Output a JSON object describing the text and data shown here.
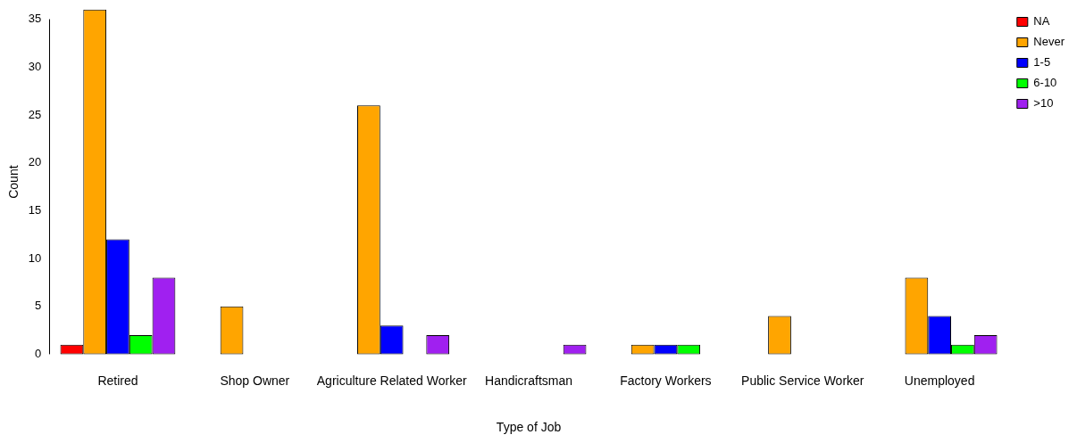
{
  "chart_data": {
    "type": "bar",
    "xlabel": "Type of Job",
    "ylabel": "Count",
    "categories": [
      "Retired",
      "Shop Owner",
      "Agriculture Related Worker",
      "Handicraftsman",
      "Factory Workers",
      "Public Service Worker",
      "Unemployed"
    ],
    "series": [
      {
        "name": "NA",
        "color": "#ff0000",
        "values": [
          1,
          0,
          0,
          0,
          0,
          0,
          0
        ]
      },
      {
        "name": "Never",
        "color": "#ffa500",
        "values": [
          36,
          5,
          26,
          0,
          1,
          4,
          8
        ]
      },
      {
        "name": "1-5",
        "color": "#0000ff",
        "values": [
          12,
          0,
          3,
          0,
          1,
          0,
          4
        ]
      },
      {
        "name": "6-10",
        "color": "#00ff00",
        "values": [
          2,
          0,
          0,
          0,
          1,
          0,
          1
        ]
      },
      {
        "name": ">10",
        "color": "#a020f0",
        "values": [
          8,
          0,
          2,
          1,
          0,
          0,
          2
        ]
      }
    ],
    "ylim": [
      0,
      36
    ],
    "yticks": [
      0,
      5,
      10,
      15,
      20,
      25,
      30,
      35
    ],
    "grid": false,
    "legend": "top right"
  }
}
